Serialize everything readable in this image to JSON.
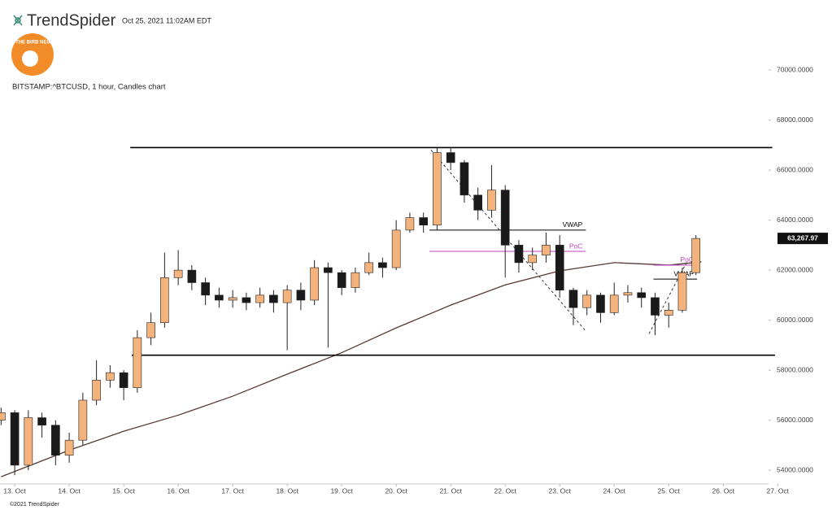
{
  "header": {
    "brand": "TrendSpider",
    "timestamp": "Oct 25, 2021 11:02AM EDT",
    "badge": "THE BIRB NEST",
    "footer": "©2021 TrendSpider"
  },
  "chart_data": {
    "type": "candlestick",
    "title": "BITSTAMP:^BTCUSD, 1 hour, Candles chart",
    "x": [
      12.75,
      13,
      13.25,
      13.5,
      13.75,
      14,
      14.25,
      14.5,
      14.75,
      15,
      15.25,
      15.5,
      15.75,
      16,
      16.25,
      16.5,
      16.75,
      17,
      17.25,
      17.5,
      17.75,
      18,
      18.25,
      18.5,
      18.75,
      19,
      19.25,
      19.5,
      19.75,
      20,
      20.25,
      20.5,
      20.75,
      21,
      21.25,
      21.5,
      21.75,
      22,
      22.25,
      22.5,
      22.75,
      23,
      23.25,
      23.5,
      23.75,
      24,
      24.25,
      24.5,
      24.75,
      25,
      25.25,
      25.5
    ],
    "open": [
      56000,
      56300,
      54200,
      56100,
      55800,
      54600,
      55200,
      56800,
      57600,
      57900,
      57300,
      59300,
      59900,
      61700,
      62000,
      61500,
      61000,
      60800,
      60900,
      60700,
      61000,
      60700,
      61200,
      60800,
      62100,
      61900,
      61300,
      61900,
      62300,
      62100,
      63600,
      64100,
      63800,
      66700,
      66300,
      65000,
      64400,
      65200,
      63000,
      62300,
      62600,
      63000,
      61200,
      60500,
      61000,
      60300,
      61000,
      61100,
      60900,
      60200,
      60400,
      61900
    ],
    "high": [
      56500,
      56400,
      56400,
      56300,
      56000,
      55500,
      57100,
      58400,
      58200,
      58000,
      59600,
      60300,
      62700,
      62800,
      62200,
      61700,
      61300,
      61200,
      61100,
      61300,
      61200,
      61400,
      61500,
      62400,
      62300,
      62000,
      62100,
      62700,
      62500,
      64000,
      64300,
      64300,
      66900,
      66900,
      66400,
      65300,
      66200,
      65400,
      63200,
      62900,
      63500,
      63400,
      61300,
      61200,
      61100,
      61500,
      61400,
      61300,
      61100,
      60700,
      62100,
      63400
    ],
    "low": [
      55800,
      53800,
      54000,
      55300,
      54200,
      54300,
      55000,
      56600,
      57300,
      56800,
      57100,
      59000,
      59700,
      61400,
      61200,
      60600,
      60500,
      60500,
      60400,
      60500,
      60300,
      58800,
      60400,
      60600,
      58900,
      61000,
      61100,
      61800,
      61700,
      62000,
      63500,
      63500,
      63600,
      66000,
      64700,
      64000,
      64100,
      61700,
      61900,
      62000,
      62300,
      60900,
      59800,
      60200,
      59900,
      60200,
      60700,
      60500,
      59400,
      59700,
      60300,
      61800
    ],
    "close": [
      56300,
      54200,
      56100,
      55800,
      54600,
      55200,
      56800,
      57600,
      57900,
      57300,
      59300,
      59900,
      61700,
      62000,
      61500,
      61000,
      60800,
      60900,
      60700,
      61000,
      60700,
      61200,
      60800,
      62100,
      61900,
      61300,
      61900,
      62300,
      62100,
      63600,
      64100,
      63800,
      66700,
      66300,
      65000,
      64400,
      65200,
      63000,
      62300,
      62600,
      63000,
      61200,
      60500,
      61000,
      60300,
      61000,
      61100,
      60900,
      60200,
      60400,
      61900,
      63267.97
    ],
    "last_close_label": "63,267.97",
    "up_color": "#f4b27c",
    "down_color": "#1a1a1a",
    "ma": {
      "color": "#5a3a32",
      "x": [
        12.75,
        14,
        15,
        16,
        17,
        18,
        19,
        20,
        21,
        22,
        23,
        24,
        25,
        25.6
      ],
      "values": [
        53740,
        54800,
        55560,
        56200,
        56960,
        57840,
        58700,
        59690,
        60600,
        61410,
        61970,
        62300,
        62200,
        62330
      ]
    },
    "levels": [
      {
        "value": 66900,
        "x_range": [
          15.12,
          26.9
        ],
        "color": "#000000"
      },
      {
        "value": 58600,
        "x_range": [
          15.15,
          26.95
        ],
        "color": "#000000"
      },
      {
        "value": 63600,
        "x_range": [
          20.61,
          23.48
        ],
        "color": "#000000",
        "label": "VWAP"
      },
      {
        "value": 62750,
        "x_range": [
          20.61,
          23.48
        ],
        "color": "#c040c0",
        "label": "PoC"
      },
      {
        "value": 61640,
        "x_range": [
          24.72,
          25.52
        ],
        "color": "#000000",
        "label": "VWAP"
      },
      {
        "value": 62200,
        "x_range": [
          24.72,
          25.52
        ],
        "color": "#c040c0",
        "label": "PoC"
      }
    ],
    "trendlines": [
      {
        "x": [
          20.64,
          23.48
        ],
        "values": [
          66800,
          59560
        ],
        "color": "#333333"
      },
      {
        "x": [
          24.64,
          25.35
        ],
        "values": [
          59460,
          62400
        ],
        "color": "#333333"
      }
    ],
    "xlim": [
      12.73,
      27.28
    ],
    "ylim": [
      53450,
      71500
    ],
    "xticks": [
      {
        "value": 13,
        "label": "13. Oct"
      },
      {
        "value": 14,
        "label": "14. Oct"
      },
      {
        "value": 15,
        "label": "15. Oct"
      },
      {
        "value": 16,
        "label": "16. Oct"
      },
      {
        "value": 17,
        "label": "17. Oct"
      },
      {
        "value": 18,
        "label": "18. Oct"
      },
      {
        "value": 19,
        "label": "19. Oct"
      },
      {
        "value": 20,
        "label": "20. Oct"
      },
      {
        "value": 21,
        "label": "21. Oct"
      },
      {
        "value": 22,
        "label": "22. Oct"
      },
      {
        "value": 23,
        "label": "23. Oct"
      },
      {
        "value": 24,
        "label": "24. Oct"
      },
      {
        "value": 25,
        "label": "25. Oct"
      },
      {
        "value": 26,
        "label": "26. Oct"
      },
      {
        "value": 27,
        "label": "27. Oct"
      }
    ],
    "yticks": [
      {
        "value": 54000,
        "label": "54000.0000"
      },
      {
        "value": 56000,
        "label": "56000.0000"
      },
      {
        "value": 58000,
        "label": "58000.0000"
      },
      {
        "value": 60000,
        "label": "60000.0000"
      },
      {
        "value": 62000,
        "label": "62000.0000"
      },
      {
        "value": 64000,
        "label": "64000.0000"
      },
      {
        "value": 66000,
        "label": "66000.0000"
      },
      {
        "value": 68000,
        "label": "68000.0000"
      },
      {
        "value": 70000,
        "label": "70000.0000"
      }
    ]
  }
}
